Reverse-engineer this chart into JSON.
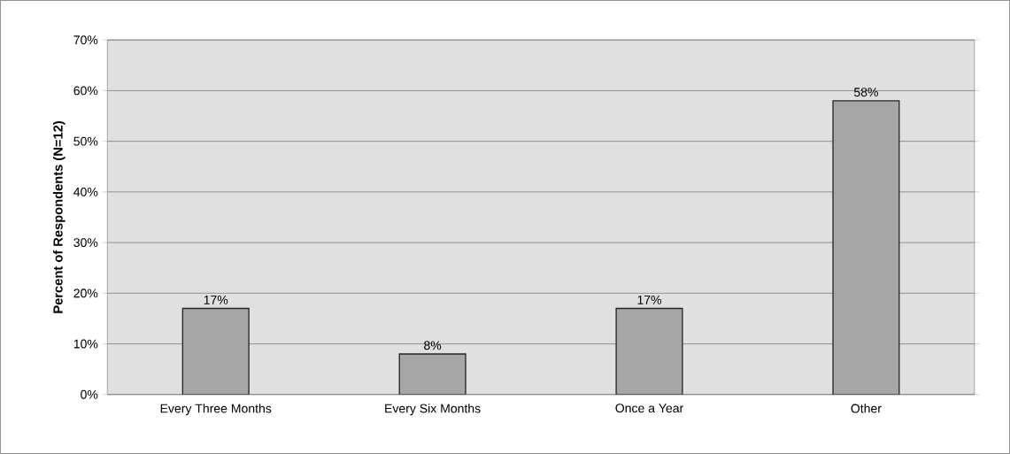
{
  "chart_data": {
    "type": "bar",
    "ylabel": "Percent of Respondents (N=12)",
    "categories": [
      "Every Three Months",
      "Every Six Months",
      "Once a Year",
      "Other"
    ],
    "values": [
      17,
      8,
      17,
      58
    ],
    "value_labels": [
      "17%",
      "8%",
      "17%",
      "58%"
    ],
    "color": "#a6a6a6",
    "ylim": [
      0,
      70
    ],
    "yticks": [
      {
        "value": 0,
        "label": "0%"
      },
      {
        "value": 10,
        "label": "10%"
      },
      {
        "value": 20,
        "label": "20%"
      },
      {
        "value": 30,
        "label": "30%"
      },
      {
        "value": 40,
        "label": "40%"
      },
      {
        "value": 50,
        "label": "50%"
      },
      {
        "value": 60,
        "label": "60%"
      },
      {
        "value": 70,
        "label": "70%"
      }
    ],
    "grid": "y"
  }
}
